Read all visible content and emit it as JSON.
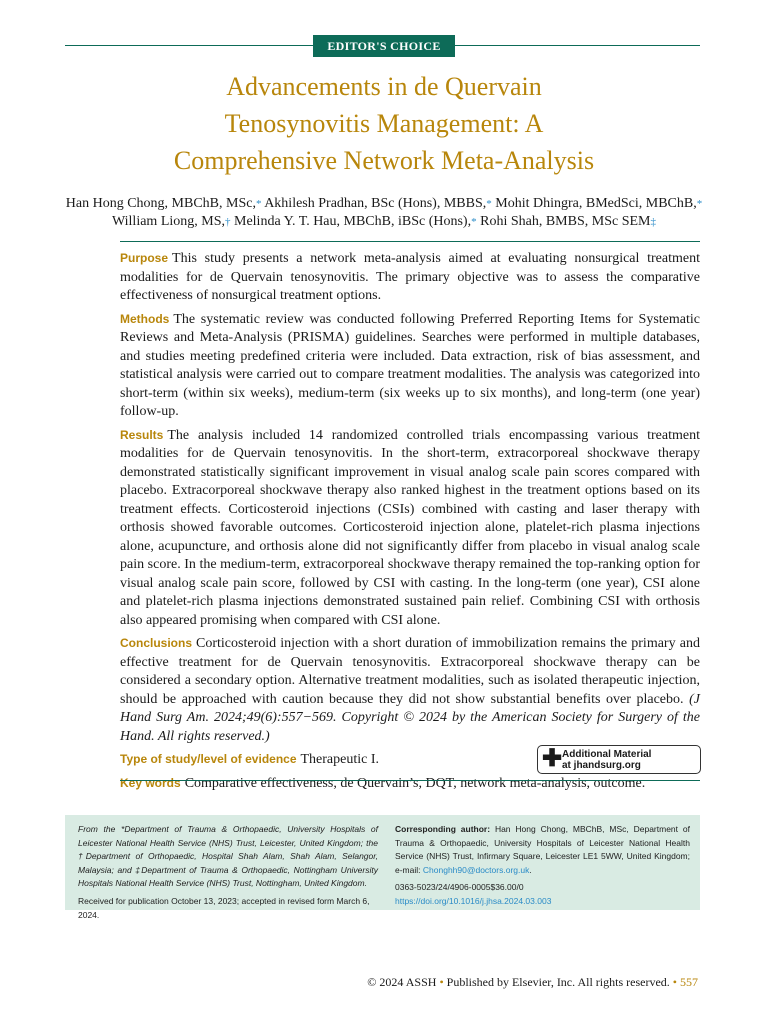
{
  "badge": "EDITOR'S CHOICE",
  "title": [
    "Advancements in de Quervain",
    "Tenosynovitis Management: A",
    "Comprehensive Network Meta-Analysis"
  ],
  "authors": [
    {
      "name": "Han Hong Chong, MBChB, MSc,",
      "mark": "*"
    },
    {
      "name": "Akhilesh Pradhan, BSc (Hons), MBBS,",
      "mark": "*"
    },
    {
      "name": "Mohit Dhingra, BMedSci, MBChB,",
      "mark": "*"
    },
    {
      "name": "William Liong, MS,",
      "mark": "†"
    },
    {
      "name": "Melinda Y. T. Hau, MBChB, iBSc (Hons),",
      "mark": "*"
    },
    {
      "name": "Rohi Shah, BMBS, MSc SEM",
      "mark": "‡"
    }
  ],
  "abstract": {
    "purpose_label": "Purpose",
    "purpose": "This study presents a network meta-analysis aimed at evaluating nonsurgical treatment modalities for de Quervain tenosynovitis. The primary objective was to assess the comparative effectiveness of nonsurgical treatment options.",
    "methods_label": "Methods",
    "methods": "The systematic review was conducted following Preferred Reporting Items for Systematic Reviews and Meta-Analysis (PRISMA) guidelines. Searches were performed in multiple databases, and studies meeting predefined criteria were included. Data extraction, risk of bias assessment, and statistical analysis were carried out to compare treatment modalities. The analysis was categorized into short-term (within six weeks), medium-term (six weeks up to six months), and long-term (one year) follow-up.",
    "results_label": "Results",
    "results": "The analysis included 14 randomized controlled trials encompassing various treatment modalities for de Quervain tenosynovitis. In the short-term, extracorporeal shockwave therapy demonstrated statistically significant improvement in visual analog scale pain scores compared with placebo. Extracorporeal shockwave therapy also ranked highest in the treatment options based on its treatment effects. Corticosteroid injections (CSIs) combined with casting and laser therapy with orthosis showed favorable outcomes. Corticosteroid injection alone, platelet-rich plasma injections alone, acupuncture, and orthosis alone did not significantly differ from placebo in visual analog scale pain score. In the medium-term, extracorporeal shockwave therapy remained the top-ranking option for visual analog scale pain score, followed by CSI with casting. In the long-term (one year), CSI alone and platelet-rich plasma injections demonstrated sustained pain relief. Combining CSI with orthosis also appeared promising when compared with CSI alone.",
    "conclusions_label": "Conclusions",
    "conclusions": "Corticosteroid injection with a short duration of immobilization remains the primary and effective treatment for de Quervain tenosynovitis. Extracorporeal shockwave therapy can be considered a secondary option. Alternative treatment modalities, such as isolated therapeutic injection, should be approached with caution because they did not show substantial benefits over placebo.",
    "citation": "(J Hand Surg Am. 2024;49(6):557−569. Copyright © 2024 by the American Society for Surgery of the Hand. All rights reserved.)",
    "type_label": "Type of study/level of evidence",
    "type": "Therapeutic I.",
    "keywords_label": "Key words",
    "keywords": "Comparative effectiveness, de Quervain’s, DQT, network meta-analysis, outcome."
  },
  "additional_material": {
    "line1": "Additional Material",
    "line2": "at jhandsurg.org"
  },
  "footnotes": {
    "affiliations": "From the *Department of Trauma & Orthopaedic, University Hospitals of Leicester National Health Service (NHS) Trust, Leicester, United Kingdom; the †Department of Orthopaedic, Hospital Shah Alam, Shah Alam, Selangor, Malaysia; and ‡Department of Trauma & Orthopaedic, Nottingham University Hospitals National Health Service (NHS) Trust, Nottingham, United Kingdom.",
    "received": "Received for publication October 13, 2023; accepted in revised form March 6, 2024.",
    "corr_label": "Corresponding author:",
    "corr": "Han Hong Chong, MBChB, MSc, Department of Trauma & Orthopaedic, University Hospitals of Leicester National Health Service (NHS) Trust, Infirmary Square, Leicester LE1 5WW, United Kingdom; e-mail:",
    "email": "Chonghh90@doctors.org.uk",
    "email_end": ".",
    "issn": "0363-5023/24/4906-0005$36.00/0",
    "doi": "https://doi.org/10.1016/j.jhsa.2024.03.003"
  },
  "bottom": {
    "copyright": "© 2024 ASSH",
    "publisher": "Published by Elsevier, Inc. All rights reserved.",
    "page": "557"
  },
  "colors": {
    "accent_teal": "#0d6b58",
    "title_gold": "#b8860b",
    "link_blue": "#2a8bc7",
    "footnote_bg": "#d9ebe3"
  }
}
